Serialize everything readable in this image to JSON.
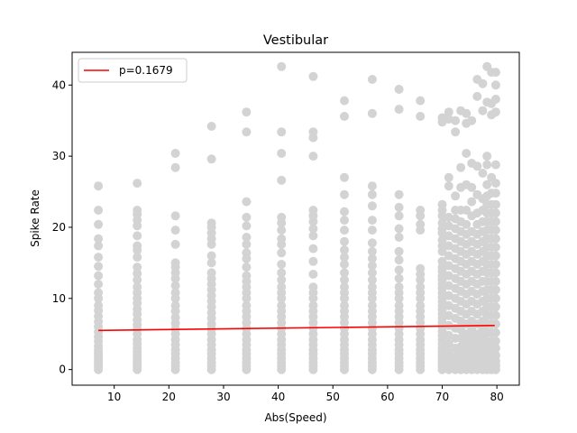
{
  "chart_data": {
    "type": "scatter",
    "title": "Vestibular",
    "xlabel": "Abs(Speed)",
    "ylabel": "Spike Rate",
    "xlim": [
      2.3,
      84.1
    ],
    "ylim": [
      -2.2,
      44.6
    ],
    "xticks": [
      10,
      20,
      30,
      40,
      50,
      60,
      70,
      80
    ],
    "yticks": [
      0,
      10,
      20,
      30,
      40
    ],
    "grid": false,
    "legend_position": "top-left",
    "colors": {
      "points": "#d3d3d3",
      "fit_line": "#ff0000"
    },
    "series": [
      {
        "kind": "scatter",
        "columns": [
          {
            "x": 7.1,
            "y": [
              0,
              0.4,
              0.8,
              1.2,
              1.6,
              2.0,
              2.4,
              2.8,
              3.3,
              4.0,
              4.6,
              5.3,
              6.0,
              6.7,
              7.5,
              8.3,
              9.0,
              10.0,
              10.8,
              12.0,
              13.2,
              14.5,
              15.8,
              17.4,
              18.4,
              20.4,
              22.4,
              25.8
            ]
          },
          {
            "x": 14.2,
            "y": [
              0,
              0.4,
              0.8,
              1.2,
              1.6,
              2.0,
              2.5,
              3.0,
              3.6,
              4.2,
              5.0,
              5.7,
              6.3,
              7.0,
              7.8,
              8.5,
              9.3,
              10.0,
              10.8,
              11.6,
              12.6,
              13.5,
              14.4,
              15.8,
              16.8,
              17.4,
              18.8,
              20.2,
              21.0,
              21.8,
              22.4,
              26.2
            ]
          },
          {
            "x": 21.2,
            "y": [
              0,
              0.5,
              1.0,
              1.6,
              2.2,
              2.8,
              3.5,
              4.2,
              5.0,
              5.7,
              6.5,
              7.3,
              8.2,
              9.0,
              10.0,
              10.8,
              11.8,
              12.8,
              13.6,
              14.4,
              15.0,
              17.6,
              19.6,
              21.6,
              28.4,
              30.4
            ]
          },
          {
            "x": 27.8,
            "y": [
              0,
              0.5,
              1.0,
              1.6,
              2.2,
              2.8,
              3.5,
              4.2,
              5.0,
              5.7,
              6.4,
              7.2,
              8.0,
              8.8,
              9.6,
              10.4,
              11.2,
              12.0,
              12.8,
              13.6,
              15.0,
              16.0,
              17.6,
              18.4,
              19.2,
              20.0,
              20.6,
              29.6,
              34.2
            ]
          },
          {
            "x": 34.2,
            "y": [
              0,
              0.5,
              1.0,
              1.6,
              2.2,
              2.8,
              3.5,
              4.2,
              5.0,
              5.8,
              6.6,
              7.4,
              8.2,
              9.0,
              10.0,
              10.8,
              11.6,
              12.4,
              13.2,
              14.4,
              15.6,
              16.4,
              17.6,
              18.6,
              20.2,
              21.4,
              23.6,
              33.4,
              36.2
            ]
          },
          {
            "x": 40.6,
            "y": [
              0,
              0.5,
              1.0,
              1.6,
              2.2,
              2.8,
              3.5,
              4.2,
              5.0,
              5.8,
              6.6,
              7.4,
              8.2,
              9.0,
              10.0,
              10.8,
              11.6,
              12.6,
              13.6,
              14.8,
              16.4,
              17.6,
              18.4,
              19.6,
              20.6,
              21.4,
              26.6,
              30.4,
              33.4,
              42.6
            ]
          },
          {
            "x": 46.4,
            "y": [
              0,
              0.5,
              1.0,
              1.6,
              2.2,
              2.8,
              3.5,
              4.2,
              5.0,
              5.8,
              6.6,
              7.4,
              8.2,
              9.0,
              10.0,
              10.8,
              11.6,
              13.4,
              15.2,
              17.0,
              18.8,
              19.8,
              20.8,
              21.6,
              22.4,
              30.0,
              32.6,
              33.4,
              41.2
            ]
          },
          {
            "x": 52.1,
            "y": [
              0,
              0.5,
              1.0,
              1.6,
              2.2,
              2.8,
              3.5,
              4.2,
              5.0,
              5.8,
              6.6,
              7.4,
              8.2,
              9.0,
              10.0,
              10.8,
              11.6,
              12.6,
              13.6,
              14.8,
              15.8,
              16.8,
              18.0,
              19.6,
              21.0,
              22.2,
              24.6,
              27.0,
              35.6,
              37.8
            ]
          },
          {
            "x": 57.2,
            "y": [
              0,
              0.5,
              1.0,
              1.6,
              2.2,
              2.8,
              3.5,
              4.2,
              5.0,
              5.8,
              6.6,
              7.4,
              8.2,
              9.0,
              10.0,
              10.8,
              11.6,
              12.6,
              13.6,
              14.6,
              15.6,
              16.6,
              17.8,
              19.6,
              21.0,
              23.0,
              24.6,
              25.8,
              36.0,
              40.8
            ]
          },
          {
            "x": 62.1,
            "y": [
              0,
              0.5,
              1.0,
              1.6,
              2.2,
              2.8,
              3.5,
              4.2,
              5.0,
              5.8,
              6.6,
              7.4,
              8.2,
              9.0,
              10.0,
              10.8,
              11.6,
              12.8,
              14.0,
              15.4,
              16.6,
              18.6,
              19.8,
              21.6,
              22.8,
              24.6,
              36.6,
              39.4
            ]
          },
          {
            "x": 66.0,
            "y": [
              0,
              0.5,
              1.0,
              1.6,
              2.2,
              2.8,
              3.5,
              4.2,
              5.0,
              5.8,
              6.6,
              7.4,
              8.2,
              9.0,
              10.0,
              10.8,
              11.6,
              12.6,
              13.4,
              14.2,
              19.6,
              20.4,
              21.6,
              22.4,
              35.6,
              37.8
            ]
          },
          {
            "x": 70.0,
            "y": [
              0,
              0.4,
              0.8,
              1.2,
              1.6,
              2.0,
              2.5,
              3.0,
              3.6,
              4.2,
              4.8,
              5.4,
              6.0,
              6.6,
              7.2,
              7.8,
              8.4,
              9.0,
              9.6,
              10.2,
              10.8,
              11.4,
              12.0,
              12.6,
              13.2,
              13.8,
              14.4,
              15.2,
              16.6,
              17.4,
              18.2,
              19.2,
              19.8,
              20.6,
              21.6,
              22.4,
              23.2,
              34.8,
              35.4
            ]
          },
          {
            "x": 71.2,
            "y": [
              0,
              0.6,
              1.4,
              2.4,
              3.6,
              4.8,
              6.2,
              7.6,
              9.0,
              10.4,
              11.8,
              13.2,
              14.6,
              16.0,
              17.4,
              18.8,
              20.2,
              21.4,
              25.8,
              27.0,
              35.2,
              36.2
            ]
          },
          {
            "x": 72.4,
            "y": [
              0,
              0.8,
              1.8,
              3.0,
              4.4,
              5.8,
              7.2,
              8.6,
              10.0,
              11.4,
              12.8,
              14.2,
              15.6,
              17.0,
              18.4,
              19.8,
              21.2,
              22.4,
              24.4,
              33.4,
              35.0
            ]
          },
          {
            "x": 73.4,
            "y": [
              0,
              0.6,
              1.4,
              2.2,
              3.2,
              4.4,
              5.6,
              6.8,
              8.2,
              9.6,
              11.0,
              12.4,
              13.8,
              15.2,
              16.6,
              18.0,
              19.4,
              20.8,
              22.4,
              25.6,
              28.4,
              36.4
            ]
          },
          {
            "x": 74.4,
            "y": [
              0,
              0.8,
              1.6,
              2.6,
              3.8,
              5.0,
              6.4,
              7.8,
              9.2,
              10.6,
              12.0,
              13.4,
              14.8,
              16.2,
              17.6,
              19.0,
              20.4,
              22.4,
              26.0,
              30.4,
              34.6,
              36.0
            ]
          },
          {
            "x": 75.4,
            "y": [
              0,
              0.6,
              1.4,
              2.2,
              3.2,
              4.4,
              5.6,
              6.8,
              8.2,
              9.6,
              11.0,
              12.4,
              13.8,
              15.2,
              16.6,
              18.0,
              19.4,
              21.6,
              23.6,
              25.6,
              29.0,
              35.0
            ]
          },
          {
            "x": 76.4,
            "y": [
              0,
              0.8,
              1.6,
              2.6,
              3.8,
              5.0,
              6.4,
              7.8,
              9.2,
              10.6,
              12.0,
              13.4,
              14.8,
              16.2,
              17.6,
              19.0,
              20.4,
              22.0,
              24.6,
              28.6,
              38.4,
              40.8
            ]
          },
          {
            "x": 77.4,
            "y": [
              0,
              0.6,
              1.4,
              2.2,
              3.2,
              4.4,
              5.6,
              6.8,
              8.2,
              9.6,
              11.0,
              12.4,
              13.8,
              15.2,
              16.6,
              18.0,
              19.4,
              20.8,
              22.4,
              24.0,
              27.6,
              36.4,
              40.2
            ]
          },
          {
            "x": 78.2,
            "y": [
              0,
              0.6,
              1.2,
              2.0,
              3.0,
              4.0,
              5.2,
              6.4,
              7.6,
              8.8,
              10.0,
              11.2,
              12.4,
              13.6,
              14.8,
              16.0,
              17.2,
              18.4,
              19.6,
              20.8,
              22.0,
              23.2,
              24.4,
              26.0,
              28.8,
              30.0,
              37.6,
              42.6
            ]
          },
          {
            "x": 79.0,
            "y": [
              0,
              0.6,
              1.2,
              2.0,
              3.0,
              4.0,
              5.2,
              6.4,
              7.6,
              8.8,
              10.0,
              11.2,
              12.4,
              13.6,
              14.8,
              16.0,
              17.2,
              18.4,
              19.6,
              20.8,
              22.0,
              23.2,
              24.8,
              27.0,
              35.8,
              37.4,
              41.8
            ]
          },
          {
            "x": 79.8,
            "y": [
              0,
              0.6,
              1.2,
              2.0,
              3.0,
              4.0,
              5.2,
              6.4,
              7.6,
              8.8,
              10.0,
              11.2,
              12.4,
              13.6,
              14.8,
              16.0,
              17.2,
              18.4,
              19.6,
              20.8,
              22.0,
              23.2,
              24.8,
              26.2,
              28.8,
              36.2,
              38.0,
              40.0,
              41.8
            ]
          }
        ]
      },
      {
        "kind": "line",
        "name": "p=0.1679",
        "x": [
          7.1,
          79.6
        ],
        "y": [
          5.5,
          6.2
        ]
      }
    ]
  }
}
